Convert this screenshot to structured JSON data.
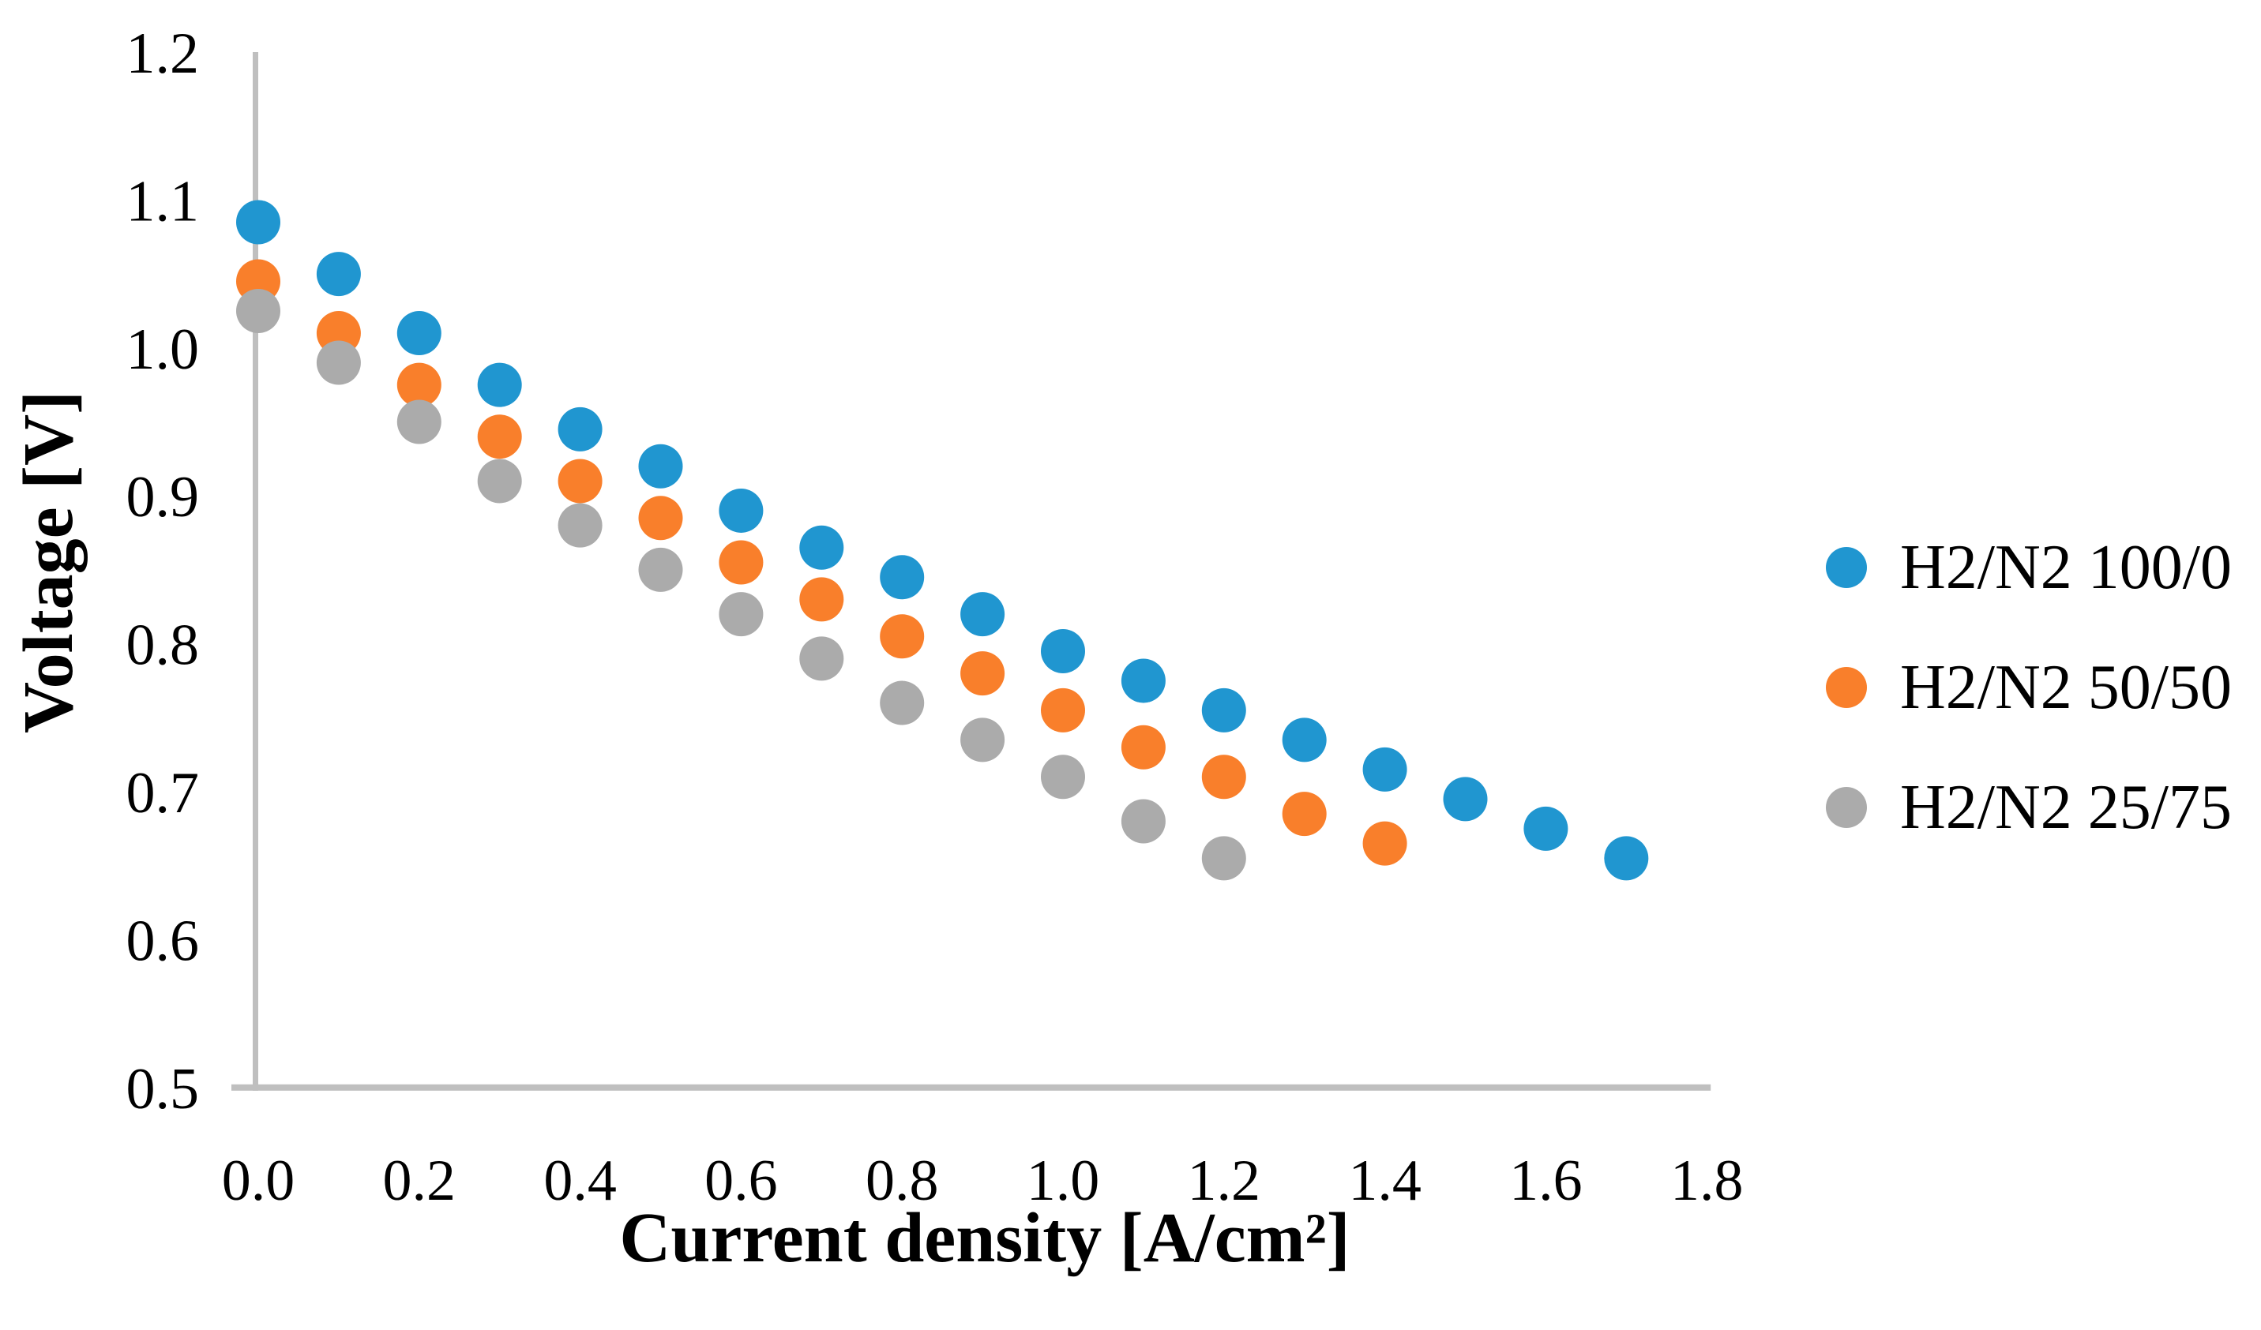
{
  "chart_data": {
    "type": "scatter",
    "title": "",
    "xlabel": "Current density [A/cm²]",
    "ylabel": "Voltage [V]",
    "xlim": [
      0.0,
      1.8
    ],
    "ylim": [
      0.5,
      1.2
    ],
    "x_ticks": [
      0.0,
      0.2,
      0.4,
      0.6,
      0.8,
      1.0,
      1.2,
      1.4,
      1.6,
      1.8
    ],
    "y_ticks": [
      1.2,
      1.1,
      1.0,
      0.9,
      0.8,
      0.7,
      0.6,
      0.5
    ],
    "tick_decimals": 1,
    "grid": false,
    "legend_position": "right",
    "axis_color": "#BFBFBF",
    "text_color": "#000000",
    "marker_radius_px": 28,
    "series": [
      {
        "name": "H2/N2 100/0",
        "color": "#2096D0",
        "points": [
          [
            0.0,
            1.085
          ],
          [
            0.1,
            1.05
          ],
          [
            0.2,
            1.01
          ],
          [
            0.3,
            0.975
          ],
          [
            0.4,
            0.945
          ],
          [
            0.5,
            0.92
          ],
          [
            0.6,
            0.89
          ],
          [
            0.7,
            0.865
          ],
          [
            0.8,
            0.845
          ],
          [
            0.9,
            0.82
          ],
          [
            1.0,
            0.795
          ],
          [
            1.1,
            0.775
          ],
          [
            1.2,
            0.755
          ],
          [
            1.3,
            0.735
          ],
          [
            1.4,
            0.715
          ],
          [
            1.5,
            0.695
          ],
          [
            1.6,
            0.675
          ],
          [
            1.7,
            0.655
          ]
        ]
      },
      {
        "name": "H2/N2 50/50",
        "color": "#F97F2B",
        "points": [
          [
            0.0,
            1.045
          ],
          [
            0.1,
            1.01
          ],
          [
            0.2,
            0.975
          ],
          [
            0.3,
            0.94
          ],
          [
            0.4,
            0.91
          ],
          [
            0.5,
            0.885
          ],
          [
            0.6,
            0.855
          ],
          [
            0.7,
            0.83
          ],
          [
            0.8,
            0.805
          ],
          [
            0.9,
            0.78
          ],
          [
            1.0,
            0.755
          ],
          [
            1.1,
            0.73
          ],
          [
            1.2,
            0.71
          ],
          [
            1.3,
            0.685
          ],
          [
            1.4,
            0.665
          ]
        ]
      },
      {
        "name": "H2/N2 25/75",
        "color": "#ABABAB",
        "points": [
          [
            0.0,
            1.025
          ],
          [
            0.1,
            0.99
          ],
          [
            0.2,
            0.95
          ],
          [
            0.3,
            0.91
          ],
          [
            0.4,
            0.88
          ],
          [
            0.5,
            0.85
          ],
          [
            0.6,
            0.82
          ],
          [
            0.7,
            0.79
          ],
          [
            0.8,
            0.76
          ],
          [
            0.9,
            0.735
          ],
          [
            1.0,
            0.71
          ],
          [
            1.1,
            0.68
          ],
          [
            1.2,
            0.655
          ]
        ]
      }
    ]
  }
}
